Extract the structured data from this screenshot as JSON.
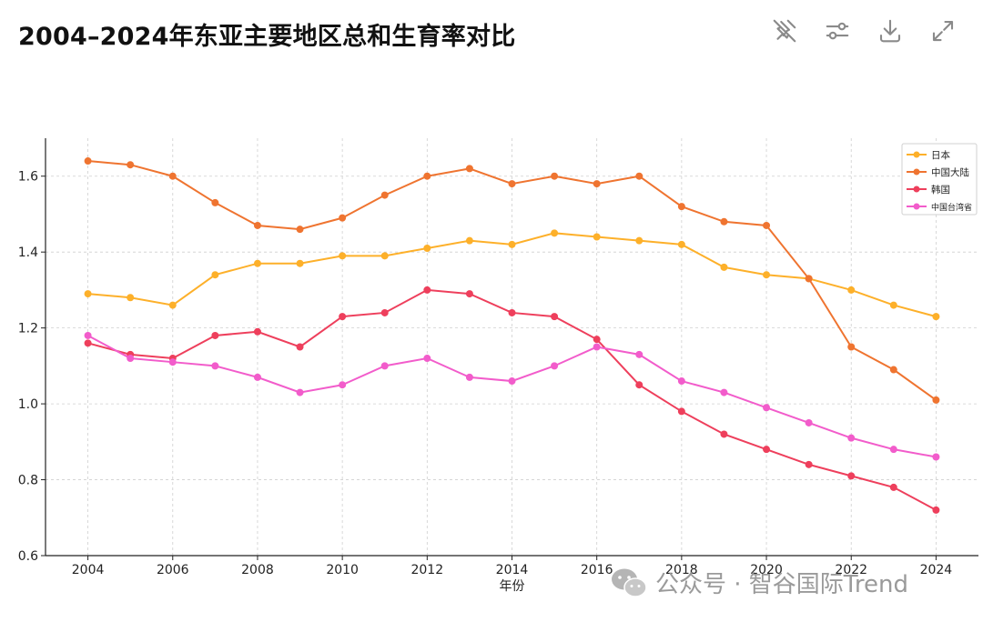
{
  "title": "2004–2024年东亚主要地区总和生育率对比",
  "toolbar": {
    "icons": [
      "pin-off-icon",
      "sliders-icon",
      "download-icon",
      "expand-icon"
    ]
  },
  "watermark": {
    "icon": "wechat-icon",
    "text": "公众号 · 智谷国际Trend"
  },
  "chart_data": {
    "type": "line",
    "x": [
      2004,
      2005,
      2006,
      2007,
      2008,
      2009,
      2010,
      2011,
      2012,
      2013,
      2014,
      2015,
      2016,
      2017,
      2018,
      2019,
      2020,
      2021,
      2022,
      2023,
      2024
    ],
    "xticks": [
      "2004",
      "2006",
      "2008",
      "2010",
      "2012",
      "2014",
      "2016",
      "2018",
      "2020",
      "2022",
      "2024"
    ],
    "yticks": [
      "0.6",
      "0.8",
      "1.0",
      "1.2",
      "1.4",
      "1.6"
    ],
    "xlabel": "年份",
    "ylabel": "",
    "xlim": [
      2003,
      2025
    ],
    "ylim": [
      0.6,
      1.7
    ],
    "grid": true,
    "legend_position": "top-right",
    "series": [
      {
        "name": "日本",
        "color": "#FDB02A",
        "values": [
          1.29,
          1.28,
          1.26,
          1.34,
          1.37,
          1.37,
          1.39,
          1.39,
          1.41,
          1.43,
          1.42,
          1.45,
          1.44,
          1.43,
          1.42,
          1.36,
          1.34,
          1.33,
          1.3,
          1.26,
          1.23
        ]
      },
      {
        "name": "中国大陆",
        "color": "#EF7430",
        "values": [
          1.64,
          1.63,
          1.6,
          1.53,
          1.47,
          1.46,
          1.49,
          1.55,
          1.6,
          1.62,
          1.58,
          1.6,
          1.58,
          1.6,
          1.52,
          1.48,
          1.47,
          1.33,
          1.15,
          1.09,
          1.01
        ]
      },
      {
        "name": "韩国",
        "color": "#EE3F5C",
        "values": [
          1.16,
          1.13,
          1.12,
          1.18,
          1.19,
          1.15,
          1.23,
          1.24,
          1.3,
          1.29,
          1.24,
          1.23,
          1.17,
          1.05,
          0.98,
          0.92,
          0.88,
          0.84,
          0.81,
          0.78,
          0.72
        ]
      },
      {
        "name": "中国台湾省",
        "color": "#F25CCB",
        "values": [
          1.18,
          1.12,
          1.11,
          1.1,
          1.07,
          1.03,
          1.05,
          1.1,
          1.12,
          1.07,
          1.06,
          1.1,
          1.15,
          1.13,
          1.06,
          1.03,
          0.99,
          0.95,
          0.91,
          0.88,
          0.86
        ]
      }
    ]
  }
}
